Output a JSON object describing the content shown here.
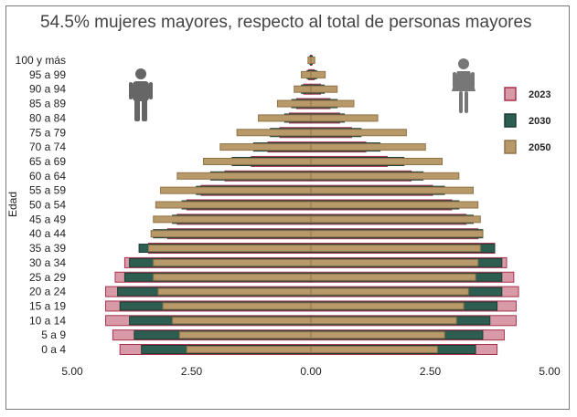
{
  "chart_data": {
    "type": "bar",
    "subtype": "population-pyramid",
    "title": "54.5% mujeres mayores, respecto al total de personas mayores",
    "ylabel": "Edad",
    "xlabel": "",
    "xlim": [
      -5,
      5
    ],
    "xticks": [
      "5.00",
      "2.50",
      "0.00",
      "2.50",
      "5.00"
    ],
    "xtick_values": [
      -5,
      -2.5,
      0,
      2.5,
      5
    ],
    "grid": false,
    "legend_position": "right",
    "categories": [
      "100 y más",
      "95 a 99",
      "90 a 94",
      "85 a 89",
      "80 a 84",
      "75 a 79",
      "70 a 74",
      "65 a 69",
      "60 a 64",
      "55 a 59",
      "50 a 54",
      "45 a 49",
      "40 a 44",
      "35 a 39",
      "30 a 34",
      "25 a 29",
      "20 a 24",
      "15 a 19",
      "10 a 14",
      "5 a 9",
      "0 a 4"
    ],
    "series": [
      {
        "name": "2023",
        "color": "#d99aa8",
        "border": "#a8324e",
        "men": [
          0.01,
          0.05,
          0.15,
          0.3,
          0.45,
          0.65,
          0.9,
          1.25,
          1.8,
          2.3,
          2.6,
          2.8,
          3.0,
          3.4,
          3.9,
          4.1,
          4.3,
          4.3,
          4.3,
          4.15,
          4.0
        ],
        "women": [
          0.02,
          0.07,
          0.2,
          0.4,
          0.6,
          0.85,
          1.15,
          1.6,
          2.1,
          2.55,
          2.95,
          3.25,
          3.5,
          3.85,
          4.1,
          4.25,
          4.35,
          4.3,
          4.3,
          4.05,
          3.9
        ]
      },
      {
        "name": "2030",
        "color": "#2e5e52",
        "border": "#1c3d35",
        "men": [
          0.02,
          0.08,
          0.2,
          0.4,
          0.55,
          0.85,
          1.2,
          1.65,
          2.1,
          2.4,
          2.7,
          2.9,
          3.3,
          3.6,
          3.8,
          3.9,
          4.05,
          4.0,
          3.8,
          3.7,
          3.55
        ],
        "women": [
          0.03,
          0.12,
          0.28,
          0.55,
          0.7,
          1.05,
          1.45,
          1.95,
          2.35,
          2.8,
          3.1,
          3.4,
          3.6,
          3.85,
          4.0,
          4.0,
          4.0,
          3.9,
          3.75,
          3.6,
          3.45
        ]
      },
      {
        "name": "2050",
        "color": "#b89a6a",
        "border": "#8f7247",
        "men": [
          0.06,
          0.2,
          0.35,
          0.7,
          1.1,
          1.55,
          1.9,
          2.25,
          2.8,
          3.15,
          3.25,
          3.3,
          3.35,
          3.4,
          3.3,
          3.3,
          3.2,
          3.1,
          2.9,
          2.75,
          2.6
        ],
        "women": [
          0.08,
          0.3,
          0.55,
          0.9,
          1.4,
          2.0,
          2.4,
          2.75,
          3.1,
          3.4,
          3.5,
          3.55,
          3.6,
          3.55,
          3.5,
          3.45,
          3.3,
          3.2,
          3.05,
          2.8,
          2.65
        ]
      }
    ]
  },
  "icons": {
    "left": "man-icon",
    "right": "woman-icon"
  }
}
